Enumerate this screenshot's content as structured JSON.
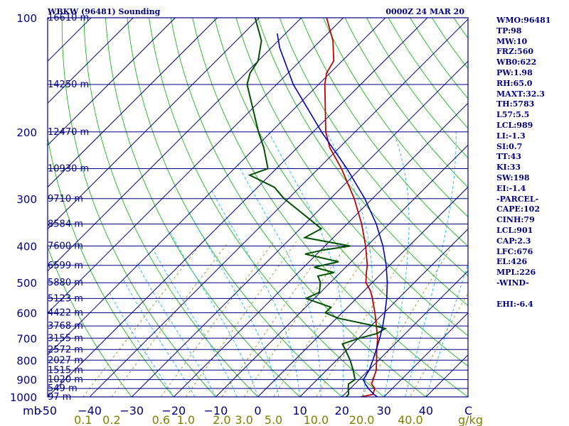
{
  "header": {
    "station": "WBKW (96481) Sounding",
    "time": "0000Z 24 MAR 20"
  },
  "indices": [
    "WMO:96481",
    "TP:98",
    "MW:10",
    "FRZ:560",
    "WB0:622",
    "PW:1.98",
    "RH:65.0",
    "MAXT:32.3",
    "TH:5783",
    "L57:5.5",
    "LCL:989",
    "LI:-1.3",
    "SI:0.7",
    "TT:43",
    "KI:33",
    "SW:198",
    "EI:-1.4",
    "-PARCEL-",
    "CAPE:102",
    "CINH:79",
    "LCL:901",
    "CAP:2.3",
    "LFC:676",
    "EL:426",
    "MPL:226",
    "-WIND-",
    "",
    "EHI:-6.4"
  ],
  "colors": {
    "frame": "#000080",
    "isobar": "#000080",
    "isotherm": "#000080",
    "dry_adiabat": "#00b000",
    "moist_adiabat": "#00b0ff",
    "mixing_ratio": "#8c8c00",
    "temperature": "#c00000",
    "dewpoint": "#005000",
    "parcel": "#0000c0"
  },
  "chart_data": {
    "type": "line",
    "title": "WBKW (96481) Sounding",
    "subtitle": "0000Z 24 MAR 20",
    "x_unit": "C",
    "y_unit": "mb",
    "mixing_ratio_unit": "g/kg",
    "ylim": [
      1000,
      100
    ],
    "y_scale": "log",
    "xlim_bottom": [
      -50,
      50
    ],
    "skew": "isotherms tilted 45 degrees",
    "pressure_ticks": [
      100,
      200,
      300,
      400,
      500,
      600,
      700,
      800,
      900,
      1000
    ],
    "temperature_ticks": [
      -50,
      -40,
      -30,
      -20,
      -10,
      0,
      10,
      20,
      30,
      40
    ],
    "temperature_tick_labels": [
      "-50",
      "−40",
      "−30",
      "−20",
      "−10",
      "0",
      "10",
      "20",
      "30",
      "40"
    ],
    "mixing_ratio_ticks": [
      0.1,
      0.2,
      0.6,
      1.0,
      2.0,
      3.0,
      5.0,
      10.0,
      20.0,
      40.0
    ],
    "mixing_ratio_tick_labels": [
      "0.1",
      "0.2",
      "0.6",
      "1.0",
      "2.0",
      "3.0",
      "5.0",
      "10.0",
      "20.0",
      "40.0"
    ],
    "height_labels": [
      {
        "p": 100,
        "label": "16610 m"
      },
      {
        "p": 150,
        "label": "14250 m"
      },
      {
        "p": 200,
        "label": "12470 m"
      },
      {
        "p": 250,
        "label": "10930 m"
      },
      {
        "p": 300,
        "label": "9710 m"
      },
      {
        "p": 350,
        "label": "8584 m"
      },
      {
        "p": 400,
        "label": "7600 m"
      },
      {
        "p": 450,
        "label": "6599 m"
      },
      {
        "p": 500,
        "label": "5880 m"
      },
      {
        "p": 550,
        "label": "5123 m"
      },
      {
        "p": 600,
        "label": "4422 m"
      },
      {
        "p": 650,
        "label": "3768 m"
      },
      {
        "p": 700,
        "label": "3155 m"
      },
      {
        "p": 750,
        "label": "2572 m"
      },
      {
        "p": 800,
        "label": "2027 m"
      },
      {
        "p": 850,
        "label": "1515 m"
      },
      {
        "p": 900,
        "label": "1020 m"
      },
      {
        "p": 950,
        "label": "549 m"
      },
      {
        "p": 1000,
        "label": "97 m"
      }
    ],
    "series": [
      {
        "key": "temperature",
        "points": [
          [
            1000,
            24.5
          ],
          [
            985,
            26.8
          ],
          [
            950,
            25.8
          ],
          [
            925,
            24.0
          ],
          [
            900,
            23.3
          ],
          [
            850,
            21.8
          ],
          [
            800,
            19.5
          ],
          [
            750,
            17.0
          ],
          [
            700,
            14.5
          ],
          [
            650,
            11.3
          ],
          [
            600,
            7.8
          ],
          [
            550,
            3.8
          ],
          [
            525,
            1.5
          ],
          [
            500,
            -1.5
          ],
          [
            470,
            -3.8
          ],
          [
            450,
            -5.3
          ],
          [
            400,
            -10.3
          ],
          [
            350,
            -16.5
          ],
          [
            300,
            -24.3
          ],
          [
            250,
            -34.5
          ],
          [
            220,
            -42.3
          ],
          [
            200,
            -47.0
          ],
          [
            150,
            -58.5
          ],
          [
            140,
            -60.8
          ],
          [
            130,
            -62.0
          ],
          [
            115,
            -67.0
          ],
          [
            100,
            -74.0
          ]
        ]
      },
      {
        "key": "dewpoint",
        "points": [
          [
            1000,
            21.0
          ],
          [
            985,
            21.0
          ],
          [
            950,
            19.5
          ],
          [
            925,
            18.5
          ],
          [
            900,
            19.0
          ],
          [
            850,
            16.3
          ],
          [
            800,
            13.2
          ],
          [
            750,
            9.5
          ],
          [
            725,
            7.5
          ],
          [
            700,
            10.2
          ],
          [
            680,
            13.3
          ],
          [
            660,
            14.0
          ],
          [
            650,
            11.0
          ],
          [
            620,
            0.3
          ],
          [
            600,
            -4.0
          ],
          [
            580,
            -4.0
          ],
          [
            550,
            -12.0
          ],
          [
            530,
            -10.3
          ],
          [
            500,
            -12.3
          ],
          [
            480,
            -14.5
          ],
          [
            470,
            -11.5
          ],
          [
            455,
            -17.5
          ],
          [
            440,
            -13.0
          ],
          [
            420,
            -22.8
          ],
          [
            410,
            -19.5
          ],
          [
            400,
            -14.0
          ],
          [
            380,
            -26.8
          ],
          [
            360,
            -25.0
          ],
          [
            340,
            -30.0
          ],
          [
            300,
            -41.0
          ],
          [
            280,
            -46.0
          ],
          [
            260,
            -54.8
          ],
          [
            250,
            -52.0
          ],
          [
            220,
            -58.0
          ],
          [
            200,
            -63.0
          ],
          [
            150,
            -77.0
          ],
          [
            140,
            -79.0
          ],
          [
            130,
            -80.0
          ],
          [
            115,
            -84.0
          ],
          [
            100,
            -91.0
          ]
        ]
      },
      {
        "key": "parcel",
        "points": [
          [
            1000,
            28.5
          ],
          [
            985,
            27.0
          ],
          [
            950,
            24.3
          ],
          [
            925,
            22.5
          ],
          [
            901,
            21.0
          ],
          [
            850,
            20.1
          ],
          [
            800,
            18.6
          ],
          [
            750,
            16.9
          ],
          [
            700,
            15.0
          ],
          [
            650,
            12.8
          ],
          [
            600,
            10.2
          ],
          [
            550,
            7.2
          ],
          [
            500,
            3.6
          ],
          [
            450,
            -0.8
          ],
          [
            400,
            -6.2
          ],
          [
            350,
            -13.0
          ],
          [
            300,
            -21.8
          ],
          [
            250,
            -33.2
          ],
          [
            200,
            -48.0
          ],
          [
            150,
            -66.0
          ],
          [
            120,
            -78.0
          ],
          [
            110,
            -82.0
          ]
        ]
      }
    ]
  }
}
